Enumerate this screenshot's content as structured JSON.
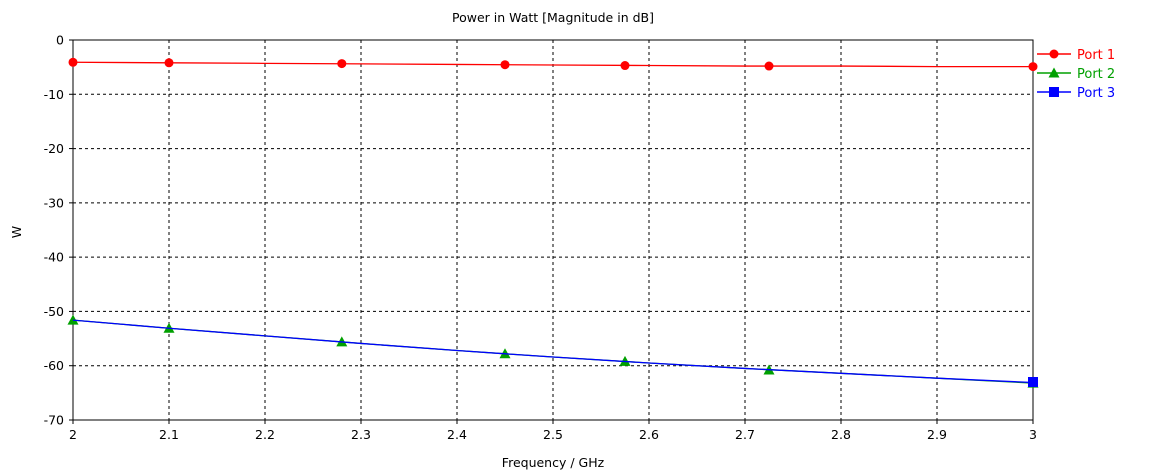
{
  "chart_data": {
    "type": "line",
    "title": "Power in Watt [Magnitude in dB]",
    "xlabel": "Frequency / GHz",
    "ylabel": "W",
    "xlim": [
      2,
      3
    ],
    "ylim": [
      -70,
      0
    ],
    "x_ticks": [
      "2",
      "2.1",
      "2.2",
      "2.3",
      "2.4",
      "2.5",
      "2.6",
      "2.7",
      "2.8",
      "2.9",
      "3"
    ],
    "y_ticks": [
      "0",
      "-10",
      "-20",
      "-30",
      "-40",
      "-50",
      "-60",
      "-70"
    ],
    "grid": true,
    "legend_position": "right",
    "series": [
      {
        "name": "Port 1",
        "color": "#ff0000",
        "marker": "circle",
        "x": [
          2.0,
          2.1,
          2.2,
          2.3,
          2.4,
          2.5,
          2.6,
          2.7,
          2.8,
          2.9,
          3.0
        ],
        "y": [
          -4.1,
          -4.2,
          -4.3,
          -4.4,
          -4.5,
          -4.6,
          -4.7,
          -4.8,
          -4.8,
          -4.9,
          -4.9
        ],
        "marker_x": [
          2.0,
          2.1,
          2.28,
          2.45,
          2.575,
          2.725,
          3.0
        ],
        "marker_y": [
          -4.1,
          -4.2,
          -4.35,
          -4.55,
          -4.7,
          -4.8,
          -4.9
        ]
      },
      {
        "name": "Port 2",
        "color": "#00a000",
        "marker": "triangle",
        "x": [
          2.0,
          2.1,
          2.2,
          2.3,
          2.4,
          2.5,
          2.6,
          2.7,
          2.8,
          2.9,
          3.0
        ],
        "y": [
          -51.6,
          -53.1,
          -54.5,
          -55.9,
          -57.2,
          -58.4,
          -59.5,
          -60.5,
          -61.4,
          -62.3,
          -63.2
        ],
        "marker_x": [
          2.0,
          2.1,
          2.28,
          2.45,
          2.575,
          2.725,
          3.0
        ],
        "marker_y": [
          -51.6,
          -53.1,
          -55.6,
          -57.8,
          -59.2,
          -60.8,
          -63.2
        ]
      },
      {
        "name": "Port 3",
        "color": "#0000ff",
        "marker": "square",
        "x": [
          2.0,
          2.1,
          2.2,
          2.3,
          2.4,
          2.5,
          2.6,
          2.7,
          2.8,
          2.9,
          3.0
        ],
        "y": [
          -51.6,
          -53.1,
          -54.5,
          -55.9,
          -57.2,
          -58.4,
          -59.5,
          -60.5,
          -61.4,
          -62.3,
          -63.1
        ],
        "marker_x": [
          3.0
        ],
        "marker_y": [
          -63.0
        ]
      }
    ]
  }
}
